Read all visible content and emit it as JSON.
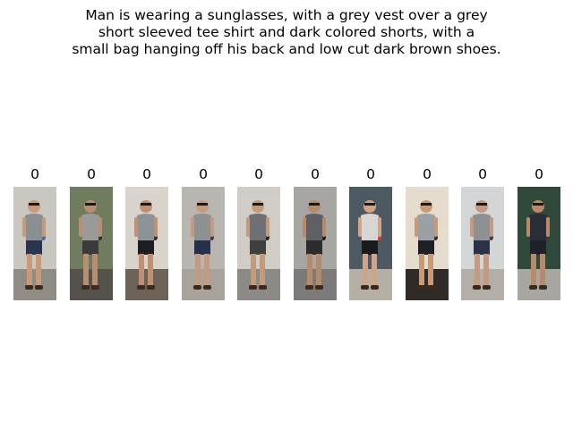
{
  "query": {
    "text": "Man is wearing a sunglasses, with a grey vest over a grey\nshort sleeved tee shirt and dark colored shorts, with a\nsmall bag hanging off his back and low cut dark brown shoes."
  },
  "gallery": {
    "items": [
      {
        "score": "0",
        "bg": "#c9c7c0",
        "ground": "#8f8c86",
        "shirt": "#8a8f94",
        "shorts": "#2a3350",
        "skin": "#c89a7a",
        "bag": "#3a6e9c"
      },
      {
        "score": "0",
        "bg": "#6f7d5e",
        "ground": "#55524c",
        "shirt": "#9a9a98",
        "shorts": "#3b3a3a",
        "skin": "#b88e70",
        "bag": "#2e2e2e"
      },
      {
        "score": "0",
        "bg": "#d8d4cc",
        "ground": "#6d6258",
        "shirt": "#8d9296",
        "shorts": "#1e1e22",
        "skin": "#c09070",
        "bag": "#2a2a2a"
      },
      {
        "score": "0",
        "bg": "#b9b6b2",
        "ground": "#a9a39c",
        "shirt": "#8e9092",
        "shorts": "#26304a",
        "skin": "#c49a80",
        "bag": "#3a3a3a"
      },
      {
        "score": "0",
        "bg": "#cfcdc6",
        "ground": "#8c8a86",
        "shirt": "#6e7074",
        "shorts": "#3f3f3c",
        "skin": "#c29a7c",
        "bag": "#222"
      },
      {
        "score": "0",
        "bg": "#a7a6a3",
        "ground": "#7c7b79",
        "shirt": "#5e6064",
        "shorts": "#2c2c2e",
        "skin": "#b88a6c",
        "bag": "#1c1c1c"
      },
      {
        "score": "0",
        "bg": "#4e5a62",
        "ground": "#b5b0a6",
        "shirt": "#d8d6d4",
        "shorts": "#1a1a1c",
        "skin": "#d0a486",
        "bag": "#cc3a44"
      },
      {
        "score": "0",
        "bg": "#e6dccd",
        "ground": "#2e2b29",
        "shirt": "#9aa0a6",
        "shorts": "#202024",
        "skin": "#c89a78",
        "bag": "#2e2e30"
      },
      {
        "score": "0",
        "bg": "#d3d6d6",
        "ground": "#b3afa8",
        "shirt": "#8f9092",
        "shorts": "#2a3246",
        "skin": "#c49a80",
        "bag": "#3c3c3c"
      },
      {
        "score": "0",
        "bg": "#2f4a3a",
        "ground": "#a8a6a0",
        "shirt": "#2a2e36",
        "shorts": "#1e2228",
        "skin": "#b98a6a",
        "bag": "#3a3a3a"
      }
    ]
  }
}
